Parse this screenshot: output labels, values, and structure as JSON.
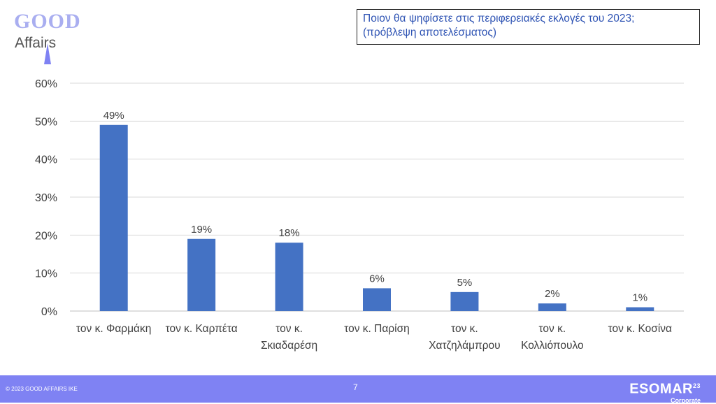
{
  "logo": {
    "line1": "GOOD",
    "line2": "Affairs"
  },
  "title": {
    "line1": "Ποιον θα ψηφίσετε στις περιφερειακές εκλογές του 2023;",
    "line2": "(πρόβλεψη αποτελέσματος)"
  },
  "footer": {
    "copyright": "© 2023 GOOD AFFAIRS IKE",
    "page": "7",
    "brand": "ESOMAR",
    "brand_sup": "23",
    "brand_sub": "Corporate"
  },
  "colors": {
    "bar": "#4472c4",
    "accent": "#7f82f3",
    "title_text": "#2f54b4"
  },
  "chart_data": {
    "type": "bar",
    "categories": [
      [
        "τον κ. Φαρμάκη"
      ],
      [
        "τον κ. Καρπέτα"
      ],
      [
        "τον κ.",
        "Σκιαδαρέση"
      ],
      [
        "τον κ. Παρίση"
      ],
      [
        "τον κ.",
        "Χατζηλάμπρου"
      ],
      [
        "τον κ.",
        "Κολλιόπουλο"
      ],
      [
        "τον κ. Κοσίνα"
      ]
    ],
    "values": [
      49,
      19,
      18,
      6,
      5,
      2,
      1
    ],
    "data_labels": [
      "49%",
      "19%",
      "18%",
      "6%",
      "5%",
      "2%",
      "1%"
    ],
    "yticks": [
      "0%",
      "10%",
      "20%",
      "30%",
      "40%",
      "50%",
      "60%"
    ],
    "ylim": [
      0,
      60
    ],
    "grid": true
  }
}
